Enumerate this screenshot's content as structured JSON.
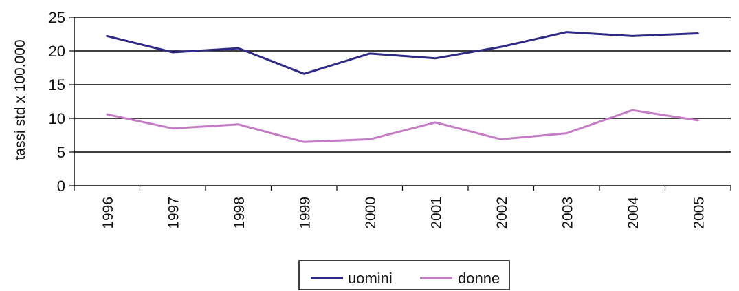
{
  "chart_data": {
    "type": "line",
    "title": "",
    "xlabel": "",
    "ylabel": "tassi std x 100.000",
    "categories": [
      "1996",
      "1997",
      "1998",
      "1999",
      "2000",
      "2001",
      "2002",
      "2003",
      "2004",
      "2005"
    ],
    "ylim": [
      0,
      25
    ],
    "yticks": [
      "0",
      "5",
      "10",
      "15",
      "20",
      "25"
    ],
    "grid": true,
    "legend_position": "bottom-center",
    "series": [
      {
        "name": "uomini",
        "color": "#2e2a86",
        "values": [
          22.2,
          19.8,
          20.4,
          16.6,
          19.6,
          18.9,
          20.6,
          22.8,
          22.2,
          22.6
        ]
      },
      {
        "name": "donne",
        "color": "#c47cc4",
        "values": [
          10.6,
          8.5,
          9.1,
          6.5,
          6.9,
          9.4,
          6.9,
          7.8,
          11.2,
          9.7
        ]
      }
    ]
  }
}
